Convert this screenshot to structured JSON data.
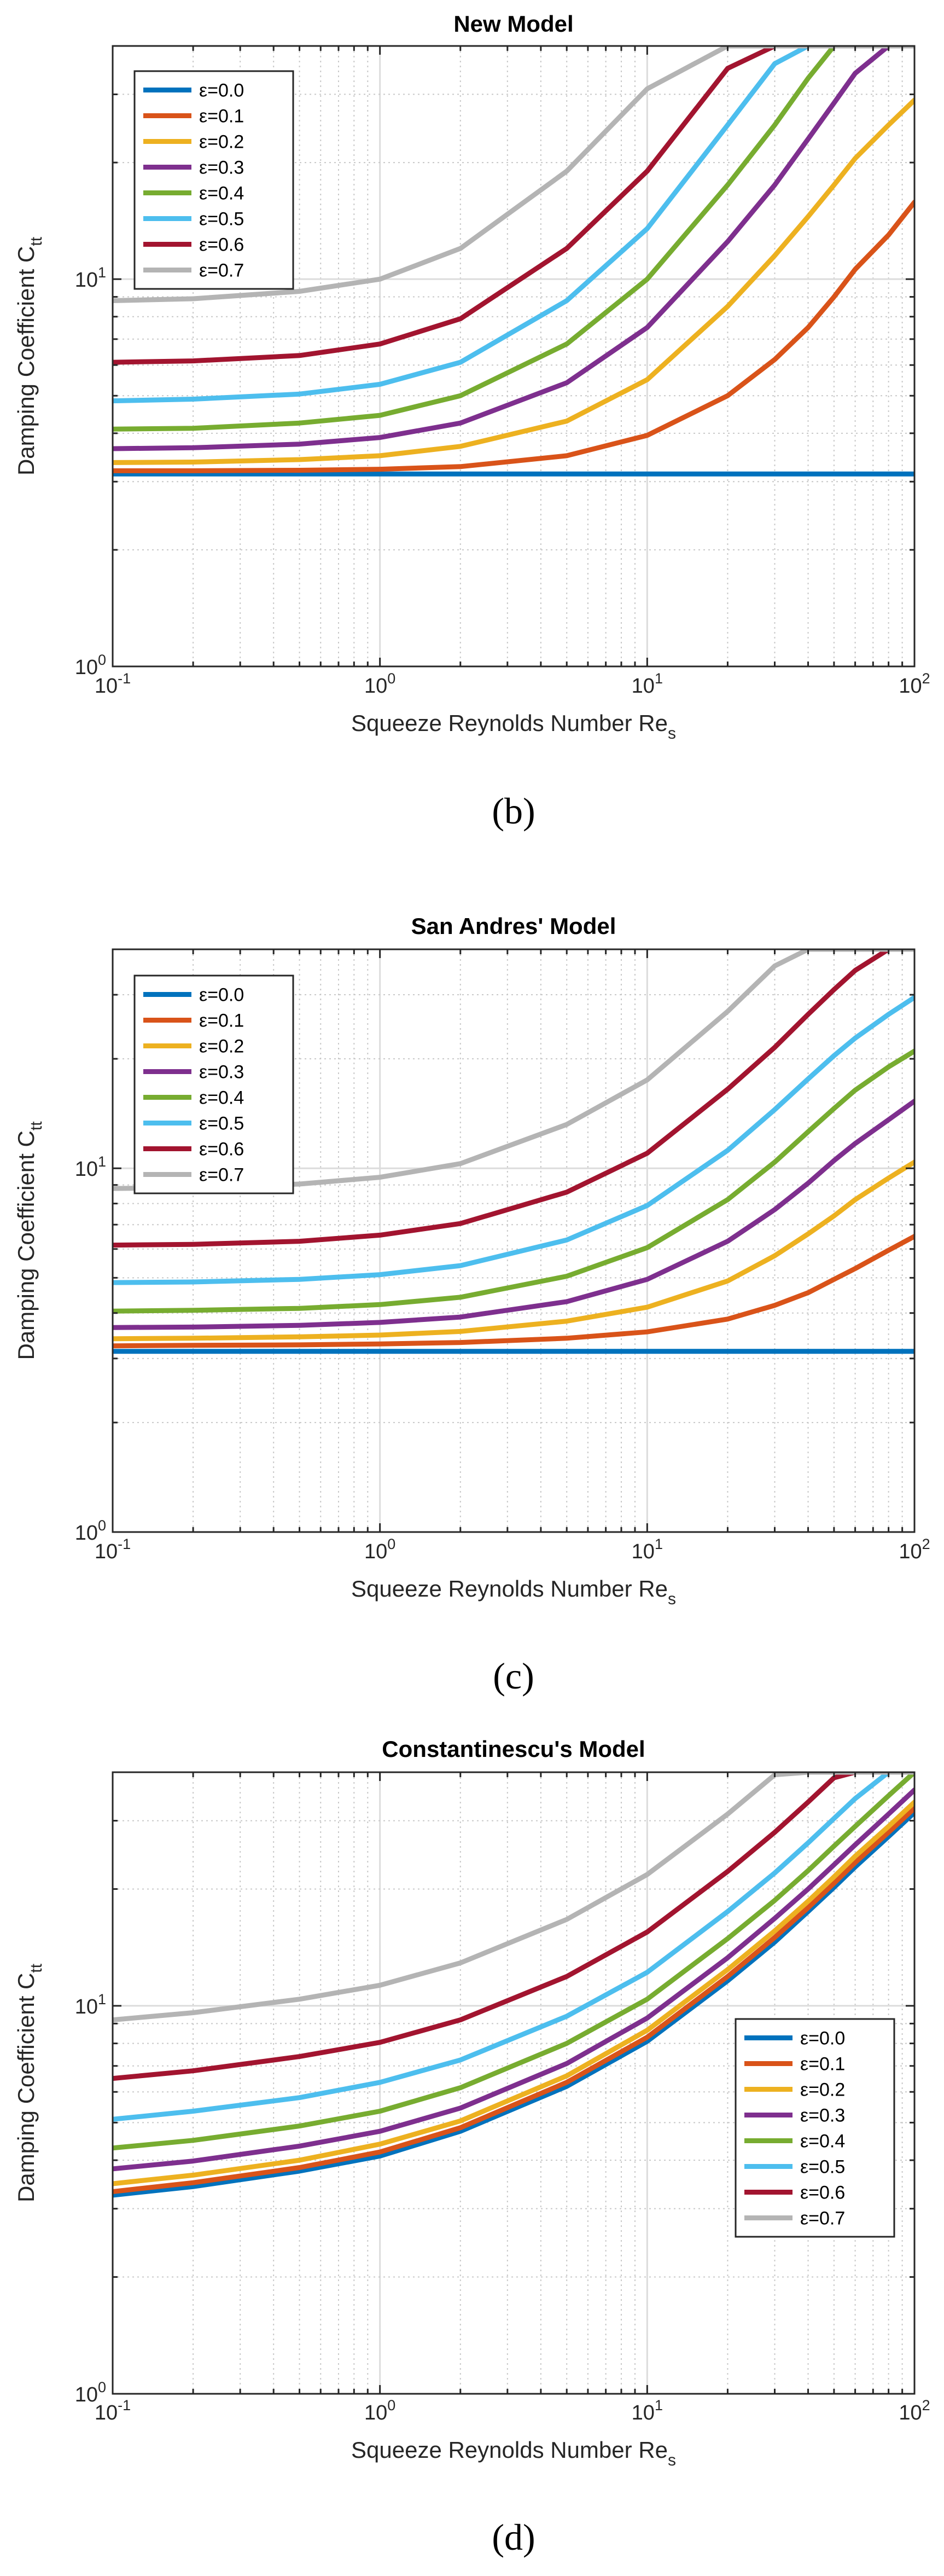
{
  "chart_data": [
    {
      "type": "line",
      "panel": "b",
      "title": "New Model",
      "caption": "(b)",
      "xlabel": "Squeeze Reynolds Number Re",
      "xlabel_sub": "s",
      "ylabel": "Damping Coefficient C",
      "ylabel_sub": "tt",
      "xscale": "log",
      "yscale": "log",
      "xlim": [
        0.1,
        100
      ],
      "ylim": [
        1,
        40
      ],
      "x_ticks": [
        {
          "value": 0.1,
          "base": "10",
          "exp": "-1"
        },
        {
          "value": 1,
          "base": "10",
          "exp": "0"
        },
        {
          "value": 10,
          "base": "10",
          "exp": "1"
        },
        {
          "value": 100,
          "base": "10",
          "exp": "2"
        }
      ],
      "y_ticks": [
        {
          "value": 1,
          "base": "10",
          "exp": "0"
        },
        {
          "value": 10,
          "base": "10",
          "exp": "1"
        }
      ],
      "grid": true,
      "legend_position": "top-left",
      "x": [
        0.1,
        0.2,
        0.5,
        1,
        2,
        5,
        10,
        20,
        30,
        40,
        50,
        60,
        80,
        100
      ],
      "series": [
        {
          "name": "ε=0.0",
          "color": "#0072BD",
          "values": [
            3.14,
            3.14,
            3.14,
            3.14,
            3.14,
            3.14,
            3.14,
            3.14,
            3.14,
            3.14,
            3.14,
            3.14,
            3.14,
            3.14
          ]
        },
        {
          "name": "ε=0.1",
          "color": "#D95319",
          "values": [
            3.2,
            3.2,
            3.21,
            3.23,
            3.28,
            3.5,
            3.95,
            5.0,
            6.2,
            7.5,
            9.0,
            10.6,
            13.0,
            15.8
          ]
        },
        {
          "name": "ε=0.2",
          "color": "#EDB120",
          "values": [
            3.36,
            3.37,
            3.42,
            3.5,
            3.7,
            4.3,
            5.5,
            8.5,
            11.5,
            14.5,
            17.5,
            20.5,
            25.0,
            29.0
          ]
        },
        {
          "name": "ε=0.3",
          "color": "#7E2F8E",
          "values": [
            3.65,
            3.67,
            3.75,
            3.9,
            4.25,
            5.4,
            7.5,
            12.5,
            17.5,
            23.0,
            28.5,
            34.0,
            40.0,
            40.0
          ]
        },
        {
          "name": "ε=0.4",
          "color": "#77AC30",
          "values": [
            4.1,
            4.12,
            4.25,
            4.45,
            5.0,
            6.8,
            10.0,
            17.5,
            25.0,
            33.0,
            40.0,
            40.0,
            40.0,
            40.0
          ]
        },
        {
          "name": "ε=0.5",
          "color": "#4DBEEE",
          "values": [
            4.85,
            4.9,
            5.05,
            5.35,
            6.1,
            8.8,
            13.5,
            25.0,
            36.0,
            40.0,
            40.0,
            40.0,
            40.0,
            40.0
          ]
        },
        {
          "name": "ε=0.6",
          "color": "#A2142F",
          "values": [
            6.1,
            6.15,
            6.35,
            6.8,
            7.9,
            12.0,
            19.0,
            35.0,
            40.0,
            40.0,
            40.0,
            40.0,
            40.0,
            40.0
          ]
        },
        {
          "name": "ε=0.7",
          "color": "#B4B4B4",
          "values": [
            8.8,
            8.9,
            9.3,
            10.0,
            12.0,
            19.0,
            31.0,
            40.0,
            40.0,
            40.0,
            40.0,
            40.0,
            40.0,
            40.0
          ]
        }
      ]
    },
    {
      "type": "line",
      "panel": "c",
      "title": "San Andres' Model",
      "caption": "(c)",
      "xlabel": "Squeeze Reynolds Number Re",
      "xlabel_sub": "s",
      "ylabel": "Damping Coefficient C",
      "ylabel_sub": "tt",
      "xscale": "log",
      "yscale": "log",
      "xlim": [
        0.1,
        100
      ],
      "ylim": [
        1,
        40
      ],
      "x_ticks": [
        {
          "value": 0.1,
          "base": "10",
          "exp": "-1"
        },
        {
          "value": 1,
          "base": "10",
          "exp": "0"
        },
        {
          "value": 10,
          "base": "10",
          "exp": "1"
        },
        {
          "value": 100,
          "base": "10",
          "exp": "2"
        }
      ],
      "y_ticks": [
        {
          "value": 1,
          "base": "10",
          "exp": "0"
        },
        {
          "value": 10,
          "base": "10",
          "exp": "1"
        }
      ],
      "grid": true,
      "legend_position": "top-left",
      "x": [
        0.1,
        0.2,
        0.5,
        1,
        2,
        5,
        10,
        20,
        30,
        40,
        50,
        60,
        80,
        100
      ],
      "series": [
        {
          "name": "ε=0.0",
          "color": "#0072BD",
          "values": [
            3.14,
            3.14,
            3.14,
            3.14,
            3.14,
            3.14,
            3.14,
            3.14,
            3.14,
            3.14,
            3.14,
            3.14,
            3.14,
            3.14
          ]
        },
        {
          "name": "ε=0.1",
          "color": "#D95319",
          "values": [
            3.25,
            3.26,
            3.27,
            3.29,
            3.32,
            3.41,
            3.55,
            3.85,
            4.2,
            4.55,
            4.95,
            5.3,
            5.95,
            6.5
          ]
        },
        {
          "name": "ε=0.2",
          "color": "#EDB120",
          "values": [
            3.4,
            3.41,
            3.44,
            3.48,
            3.56,
            3.8,
            4.15,
            4.9,
            5.75,
            6.6,
            7.4,
            8.2,
            9.4,
            10.4
          ]
        },
        {
          "name": "ε=0.3",
          "color": "#7E2F8E",
          "values": [
            3.65,
            3.66,
            3.7,
            3.77,
            3.9,
            4.3,
            4.95,
            6.3,
            7.7,
            9.1,
            10.5,
            11.7,
            13.6,
            15.3
          ]
        },
        {
          "name": "ε=0.4",
          "color": "#77AC30",
          "values": [
            4.05,
            4.07,
            4.12,
            4.22,
            4.42,
            5.05,
            6.05,
            8.2,
            10.4,
            12.6,
            14.6,
            16.4,
            19.0,
            21.0
          ]
        },
        {
          "name": "ε=0.5",
          "color": "#4DBEEE",
          "values": [
            4.85,
            4.87,
            4.95,
            5.1,
            5.4,
            6.35,
            7.9,
            11.2,
            14.5,
            17.6,
            20.4,
            22.8,
            26.5,
            29.5
          ]
        },
        {
          "name": "ε=0.6",
          "color": "#A2142F",
          "values": [
            6.15,
            6.18,
            6.3,
            6.55,
            7.05,
            8.6,
            11.0,
            16.5,
            21.5,
            26.5,
            31.0,
            35.0,
            40.0,
            40.0
          ]
        },
        {
          "name": "ε=0.7",
          "color": "#B4B4B4",
          "values": [
            8.8,
            8.85,
            9.05,
            9.45,
            10.3,
            13.2,
            17.5,
            27.0,
            36.0,
            40.0,
            40.0,
            40.0,
            40.0,
            40.0
          ]
        }
      ]
    },
    {
      "type": "line",
      "panel": "d",
      "title": "Constantinescu's Model",
      "caption": "(d)",
      "xlabel": "Squeeze Reynolds Number Re",
      "xlabel_sub": "s",
      "ylabel": "Damping Coefficient C",
      "ylabel_sub": "tt",
      "xscale": "log",
      "yscale": "log",
      "xlim": [
        0.1,
        100
      ],
      "ylim": [
        1,
        40
      ],
      "x_ticks": [
        {
          "value": 0.1,
          "base": "10",
          "exp": "-1"
        },
        {
          "value": 1,
          "base": "10",
          "exp": "0"
        },
        {
          "value": 10,
          "base": "10",
          "exp": "1"
        },
        {
          "value": 100,
          "base": "10",
          "exp": "2"
        }
      ],
      "y_ticks": [
        {
          "value": 1,
          "base": "10",
          "exp": "0"
        },
        {
          "value": 10,
          "base": "10",
          "exp": "1"
        }
      ],
      "grid": true,
      "legend_position": "bottom-right",
      "x": [
        0.1,
        0.2,
        0.5,
        1,
        2,
        5,
        10,
        20,
        30,
        40,
        50,
        60,
        80,
        100
      ],
      "series": [
        {
          "name": "ε=0.0",
          "color": "#0072BD",
          "values": [
            3.25,
            3.42,
            3.75,
            4.1,
            4.75,
            6.2,
            8.1,
            11.6,
            14.6,
            17.5,
            20.2,
            22.8,
            27.3,
            31.5
          ]
        },
        {
          "name": "ε=0.1",
          "color": "#D95319",
          "values": [
            3.32,
            3.5,
            3.83,
            4.2,
            4.85,
            6.35,
            8.3,
            11.9,
            15.0,
            17.9,
            20.7,
            23.4,
            28.0,
            32.3
          ]
        },
        {
          "name": "ε=0.2",
          "color": "#EDB120",
          "values": [
            3.48,
            3.66,
            4.0,
            4.4,
            5.05,
            6.6,
            8.65,
            12.4,
            15.6,
            18.6,
            21.5,
            24.3,
            29.0,
            33.5
          ]
        },
        {
          "name": "ε=0.3",
          "color": "#7E2F8E",
          "values": [
            3.8,
            3.98,
            4.35,
            4.75,
            5.45,
            7.1,
            9.3,
            13.3,
            16.8,
            20.0,
            23.1,
            26.0,
            31.2,
            36.0
          ]
        },
        {
          "name": "ε=0.4",
          "color": "#77AC30",
          "values": [
            4.3,
            4.5,
            4.9,
            5.35,
            6.15,
            8.0,
            10.4,
            14.9,
            18.7,
            22.3,
            25.8,
            29.0,
            34.8,
            40.0
          ]
        },
        {
          "name": "ε=0.5",
          "color": "#4DBEEE",
          "values": [
            5.1,
            5.35,
            5.8,
            6.35,
            7.25,
            9.4,
            12.2,
            17.5,
            22.0,
            26.3,
            30.4,
            34.2,
            40.0,
            40.0
          ]
        },
        {
          "name": "ε=0.6",
          "color": "#A2142F",
          "values": [
            6.5,
            6.8,
            7.4,
            8.05,
            9.2,
            11.9,
            15.5,
            22.2,
            28.0,
            33.5,
            38.7,
            40.0,
            40.0,
            40.0
          ]
        },
        {
          "name": "ε=0.7",
          "color": "#B4B4B4",
          "values": [
            9.2,
            9.6,
            10.4,
            11.3,
            12.9,
            16.7,
            21.8,
            31.2,
            39.4,
            40.0,
            40.0,
            40.0,
            40.0,
            40.0
          ]
        }
      ]
    }
  ]
}
